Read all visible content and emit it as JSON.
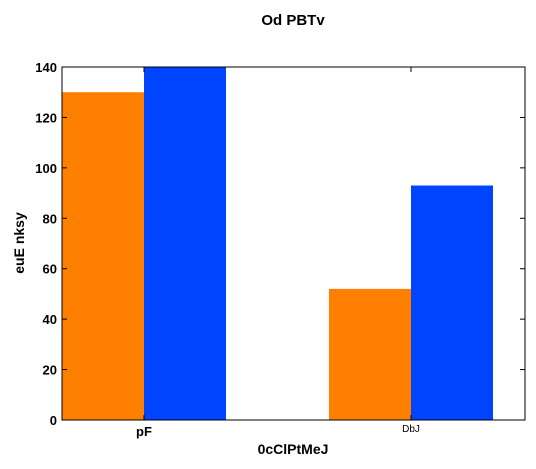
{
  "chart_data": {
    "type": "bar",
    "title": "Od PBTv",
    "xlabel": "0cClPtMeJ",
    "ylabel": "euE nksy",
    "categories": [
      "pF",
      "DbJ"
    ],
    "series": [
      {
        "values": [
          130,
          52
        ],
        "color": "#ff8000"
      },
      {
        "values": [
          140,
          93
        ],
        "color": "#0044ff"
      }
    ],
    "ylim": [
      0,
      140
    ],
    "yticks": [
      0,
      20,
      40,
      60,
      80,
      100,
      120,
      140
    ],
    "grid": false,
    "legend": "none"
  }
}
